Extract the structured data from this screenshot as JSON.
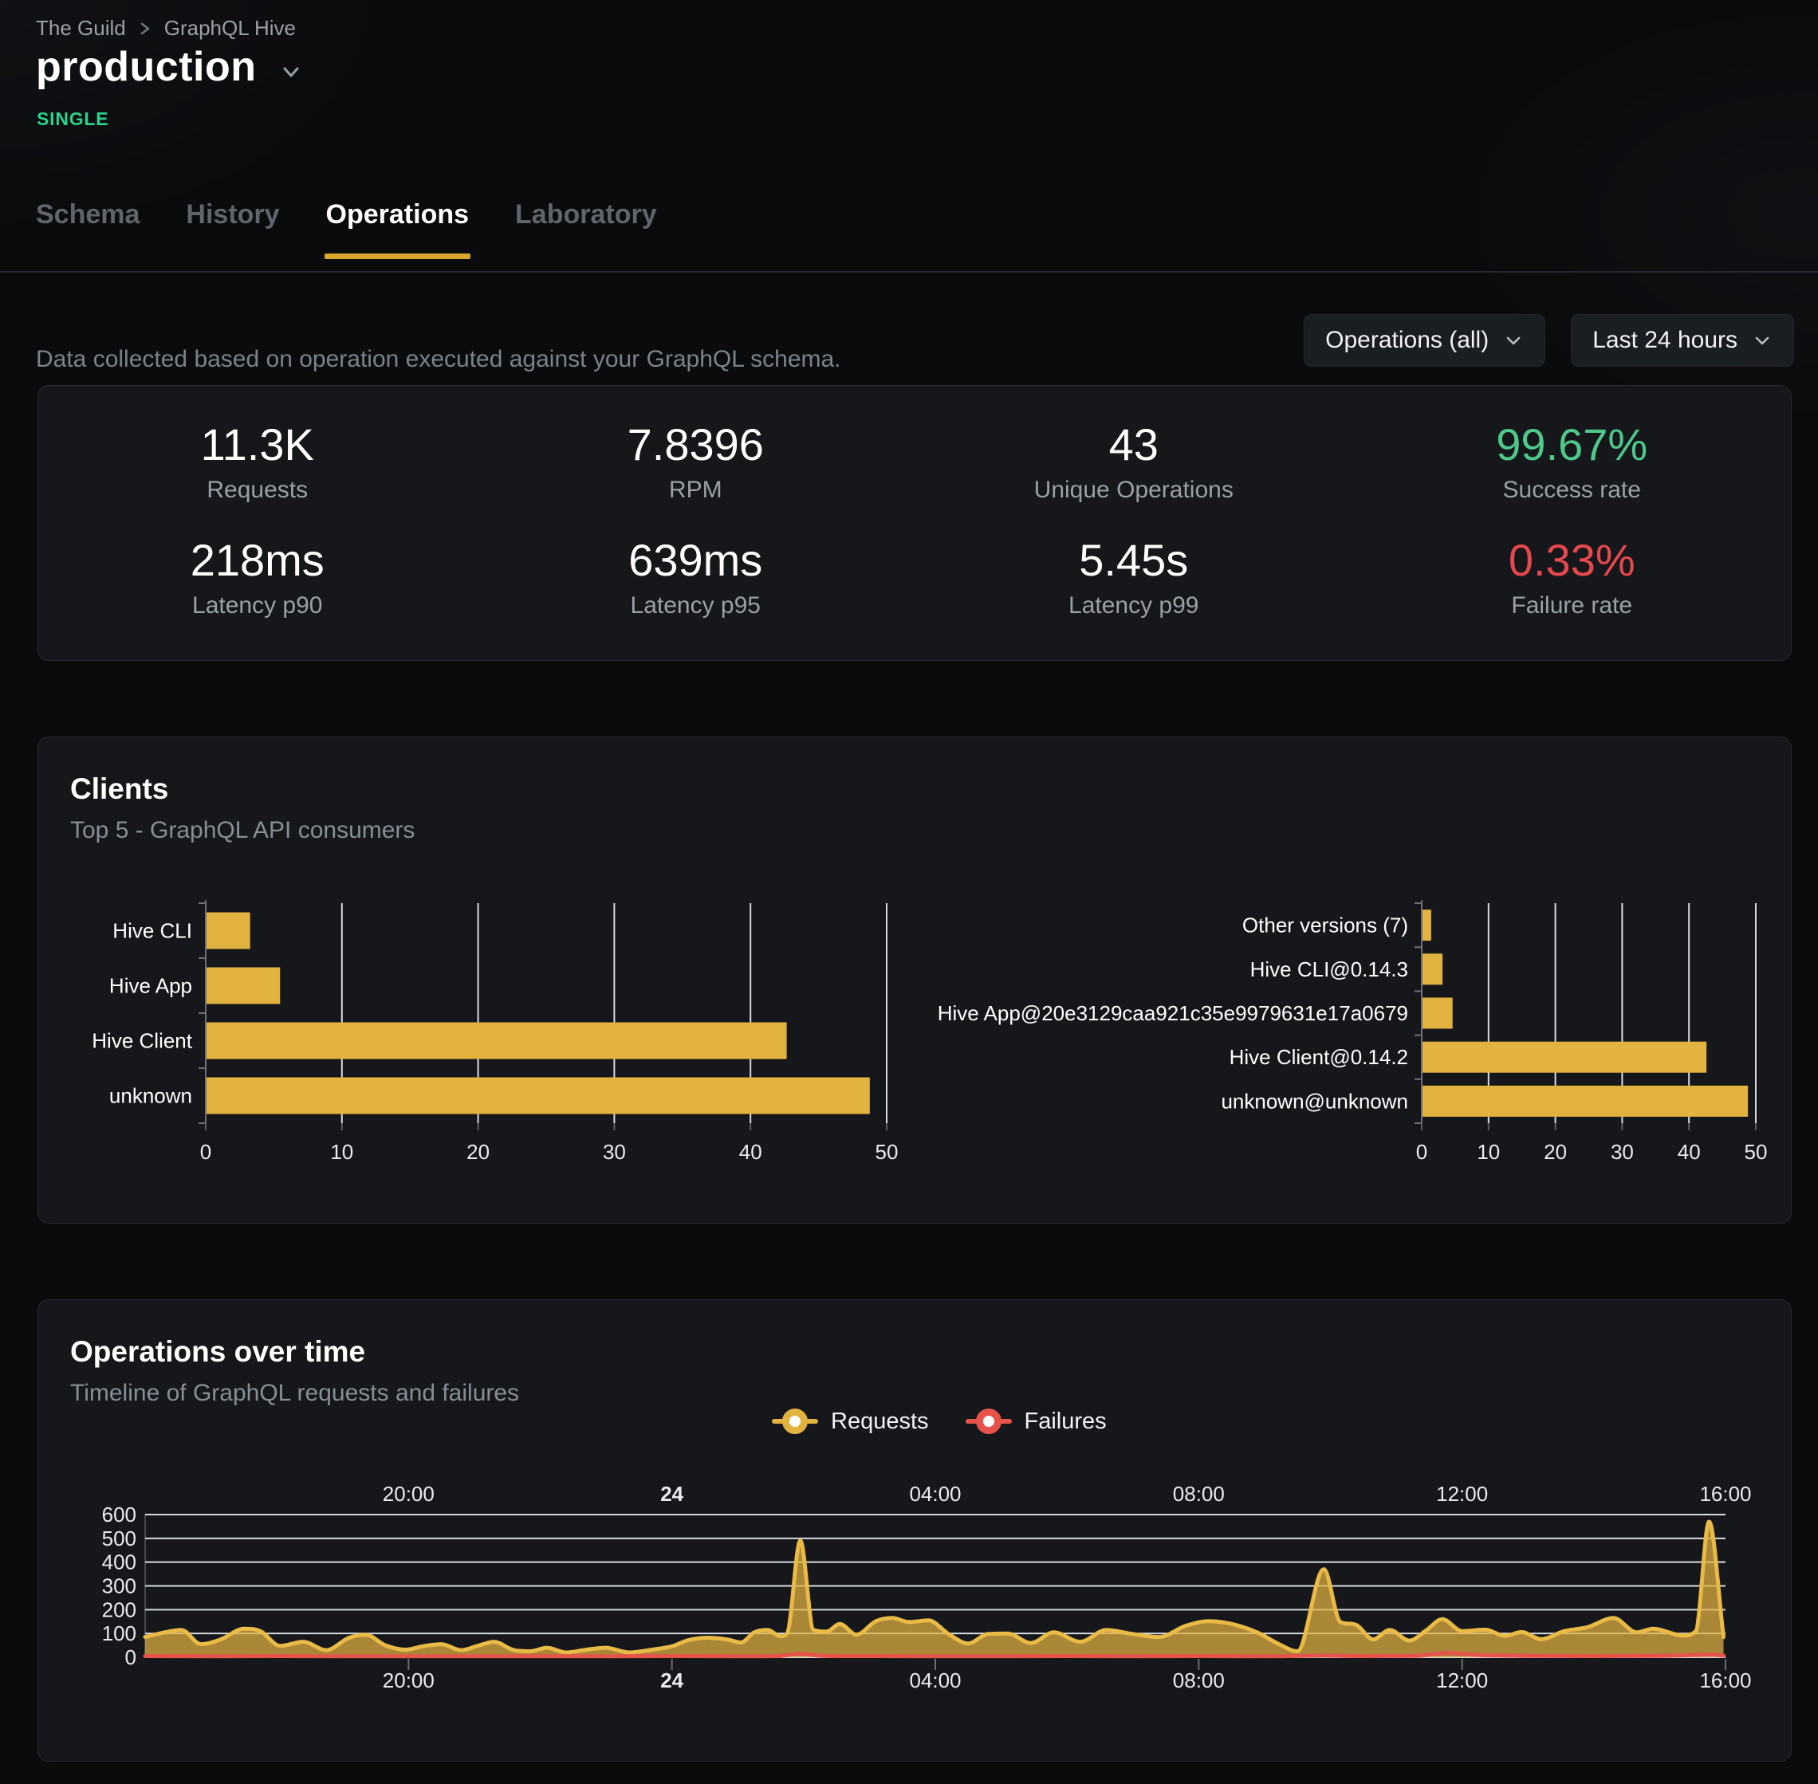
{
  "breadcrumb": {
    "org": "The Guild",
    "project": "GraphQL Hive"
  },
  "target": {
    "name": "production",
    "badge": "SINGLE",
    "badge_color": "#2fd28c"
  },
  "tabs": [
    {
      "label": "Schema",
      "active": false
    },
    {
      "label": "History",
      "active": false
    },
    {
      "label": "Operations",
      "active": true
    },
    {
      "label": "Laboratory",
      "active": false
    }
  ],
  "accent_color": "#d9a62e",
  "description": "Data collected based on operation executed against your GraphQL schema.",
  "filters": {
    "operations": "Operations (all)",
    "period": "Last 24 hours"
  },
  "stats": [
    {
      "value": "11.3K",
      "label": "Requests",
      "color": "#ffffff"
    },
    {
      "value": "7.8396",
      "label": "RPM",
      "color": "#ffffff"
    },
    {
      "value": "43",
      "label": "Unique Operations",
      "color": "#ffffff"
    },
    {
      "value": "99.67%",
      "label": "Success rate",
      "color": "#4fc98b"
    },
    {
      "value": "218ms",
      "label": "Latency p90",
      "color": "#ffffff"
    },
    {
      "value": "639ms",
      "label": "Latency p95",
      "color": "#ffffff"
    },
    {
      "value": "5.45s",
      "label": "Latency p99",
      "color": "#ffffff"
    },
    {
      "value": "0.33%",
      "label": "Failure rate",
      "color": "#e5484d"
    }
  ],
  "clients_card": {
    "title": "Clients",
    "subtitle": "Top 5 - GraphQL API consumers"
  },
  "operations_card": {
    "title": "Operations over time",
    "subtitle": "Timeline of GraphQL requests and failures"
  },
  "chart_data": [
    {
      "id": "clients-by-name",
      "type": "bar",
      "orientation": "horizontal",
      "categories": [
        "Hive CLI",
        "Hive App",
        "Hive Client",
        "unknown"
      ],
      "values": [
        3.2,
        5.4,
        42.6,
        48.7
      ],
      "xlim": [
        0,
        50
      ],
      "xticks": [
        0,
        10,
        20,
        30,
        40,
        50
      ],
      "bar_color": "#e3b341",
      "grid": true,
      "legend_position": "none"
    },
    {
      "id": "clients-by-version",
      "type": "bar",
      "orientation": "horizontal",
      "categories": [
        "Other versions (7)",
        "Hive CLI@0.14.3",
        "Hive App@20e3129caa921c35e9979631e17a0679",
        "Hive Client@0.14.2",
        "unknown@unknown"
      ],
      "values": [
        1.3,
        3.0,
        4.5,
        42.5,
        48.7
      ],
      "xlim": [
        0,
        50
      ],
      "xticks": [
        0,
        10,
        20,
        30,
        40,
        50
      ],
      "bar_color": "#e3b341",
      "grid": true,
      "legend_position": "none"
    },
    {
      "id": "operations-over-time",
      "type": "area",
      "x_unit": "hours-from-16:00",
      "x_range_hours": 24,
      "xticks": [
        {
          "h": 4,
          "label": "20:00",
          "bold": false
        },
        {
          "h": 8,
          "label": "24",
          "bold": true
        },
        {
          "h": 12,
          "label": "04:00",
          "bold": false
        },
        {
          "h": 16,
          "label": "08:00",
          "bold": false
        },
        {
          "h": 20,
          "label": "12:00",
          "bold": false
        },
        {
          "h": 24,
          "label": "16:00",
          "bold": false
        }
      ],
      "ylim": [
        0,
        600
      ],
      "yticks": [
        0,
        100,
        200,
        300,
        400,
        500,
        600
      ],
      "grid": true,
      "legend_position": "top",
      "series": [
        {
          "name": "Requests",
          "color": "#e3b341",
          "stroke": "#e9ba45",
          "points": [
            [
              0,
              85
            ],
            [
              0.3,
              105
            ],
            [
              0.55,
              115
            ],
            [
              0.85,
              55
            ],
            [
              1.15,
              75
            ],
            [
              1.5,
              120
            ],
            [
              1.75,
              110
            ],
            [
              2.05,
              48
            ],
            [
              2.4,
              65
            ],
            [
              2.75,
              30
            ],
            [
              3.1,
              82
            ],
            [
              3.35,
              95
            ],
            [
              3.65,
              50
            ],
            [
              3.95,
              32
            ],
            [
              4.25,
              48
            ],
            [
              4.5,
              55
            ],
            [
              4.8,
              30
            ],
            [
              5.05,
              48
            ],
            [
              5.3,
              65
            ],
            [
              5.6,
              30
            ],
            [
              5.85,
              25
            ],
            [
              6.1,
              40
            ],
            [
              6.4,
              20
            ],
            [
              6.7,
              32
            ],
            [
              7.0,
              40
            ],
            [
              7.35,
              20
            ],
            [
              7.7,
              32
            ],
            [
              8.0,
              46
            ],
            [
              8.25,
              72
            ],
            [
              8.55,
              82
            ],
            [
              8.85,
              74
            ],
            [
              9.05,
              62
            ],
            [
              9.25,
              105
            ],
            [
              9.45,
              115
            ],
            [
              9.65,
              88
            ],
            [
              9.75,
              100
            ],
            [
              9.95,
              490
            ],
            [
              10.15,
              115
            ],
            [
              10.35,
              108
            ],
            [
              10.55,
              140
            ],
            [
              10.8,
              95
            ],
            [
              11.1,
              152
            ],
            [
              11.35,
              165
            ],
            [
              11.6,
              148
            ],
            [
              11.9,
              155
            ],
            [
              12.2,
              98
            ],
            [
              12.5,
              58
            ],
            [
              12.8,
              98
            ],
            [
              13.1,
              100
            ],
            [
              13.45,
              60
            ],
            [
              13.8,
              105
            ],
            [
              14.2,
              65
            ],
            [
              14.6,
              115
            ],
            [
              14.95,
              100
            ],
            [
              15.4,
              85
            ],
            [
              15.8,
              132
            ],
            [
              16.15,
              152
            ],
            [
              16.5,
              140
            ],
            [
              16.9,
              103
            ],
            [
              17.2,
              58
            ],
            [
              17.5,
              25
            ],
            [
              17.9,
              370
            ],
            [
              18.15,
              148
            ],
            [
              18.4,
              135
            ],
            [
              18.65,
              75
            ],
            [
              18.9,
              115
            ],
            [
              19.2,
              70
            ],
            [
              19.45,
              112
            ],
            [
              19.7,
              160
            ],
            [
              20.0,
              110
            ],
            [
              20.35,
              116
            ],
            [
              20.65,
              90
            ],
            [
              20.9,
              106
            ],
            [
              21.2,
              76
            ],
            [
              21.55,
              110
            ],
            [
              21.9,
              126
            ],
            [
              22.3,
              165
            ],
            [
              22.65,
              105
            ],
            [
              22.9,
              120
            ],
            [
              23.35,
              92
            ],
            [
              23.55,
              110
            ],
            [
              23.75,
              570
            ],
            [
              23.97,
              85
            ]
          ]
        },
        {
          "name": "Failures",
          "color": "#e5534b",
          "stroke": "#e5534b",
          "points": [
            [
              0,
              5
            ],
            [
              1,
              4
            ],
            [
              2,
              5
            ],
            [
              3,
              4
            ],
            [
              4,
              4
            ],
            [
              5,
              4
            ],
            [
              6,
              4
            ],
            [
              7,
              4
            ],
            [
              8,
              5
            ],
            [
              9,
              4
            ],
            [
              9.6,
              5
            ],
            [
              9.95,
              14
            ],
            [
              10.3,
              6
            ],
            [
              11,
              5
            ],
            [
              12,
              4
            ],
            [
              13,
              4
            ],
            [
              14,
              5
            ],
            [
              15,
              4
            ],
            [
              16,
              5
            ],
            [
              17,
              4
            ],
            [
              17.9,
              7
            ],
            [
              18.5,
              5
            ],
            [
              19.3,
              6
            ],
            [
              19.8,
              18
            ],
            [
              20.2,
              10
            ],
            [
              20.6,
              7
            ],
            [
              21,
              6
            ],
            [
              22,
              5
            ],
            [
              23,
              6
            ],
            [
              23.8,
              11
            ],
            [
              23.97,
              7
            ]
          ]
        }
      ]
    }
  ]
}
